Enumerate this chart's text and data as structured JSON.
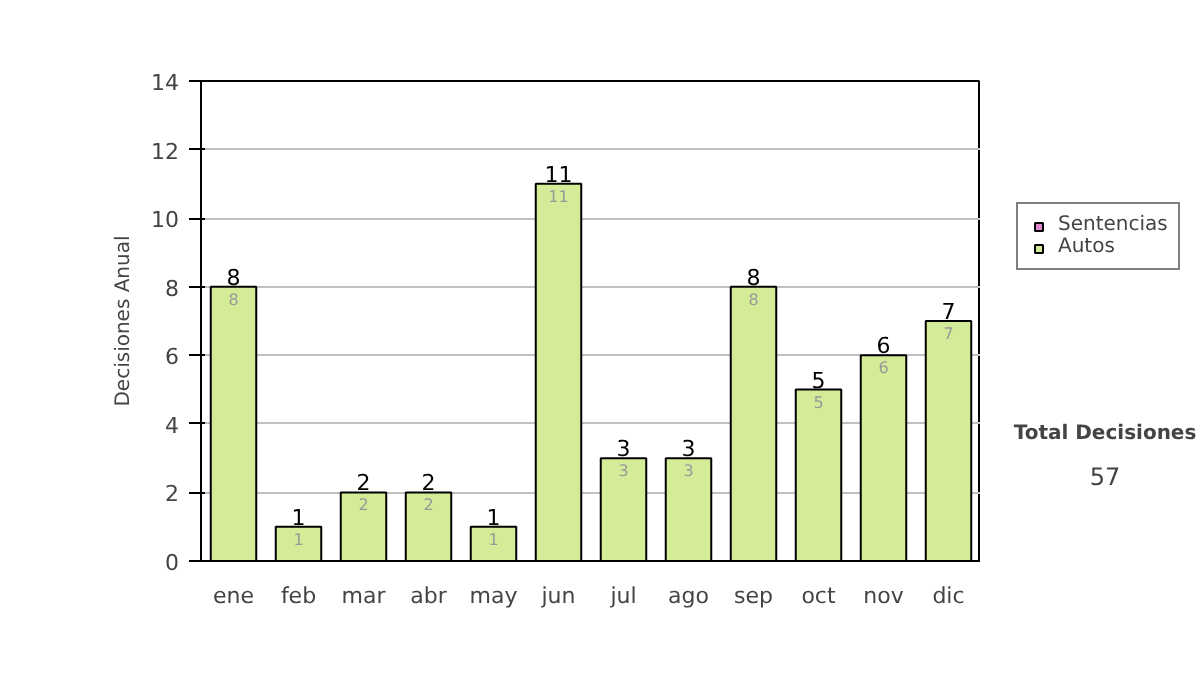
{
  "chart_data": {
    "type": "bar",
    "stacked": true,
    "categories": [
      "ene",
      "feb",
      "mar",
      "abr",
      "may",
      "jun",
      "jul",
      "ago",
      "sep",
      "oct",
      "nov",
      "dic"
    ],
    "ylabel": "Decisiones Anual",
    "series": [
      {
        "name": "Sentencias",
        "color": "#dd88cc",
        "values": [
          0,
          0,
          0,
          0,
          0,
          0,
          0,
          0,
          0,
          0,
          0,
          0
        ]
      },
      {
        "name": "Autos",
        "color": "#d4eb98",
        "values": [
          8,
          1,
          2,
          2,
          1,
          11,
          3,
          3,
          8,
          5,
          6,
          7
        ],
        "value_labels": [
          "8",
          "1",
          "2",
          "2",
          "1",
          "11",
          "3",
          "3",
          "8",
          "5",
          "6",
          "7"
        ]
      }
    ],
    "totals": [
      "8",
      "1",
      "2",
      "2",
      "1",
      "11",
      "3",
      "3",
      "8",
      "5",
      "6",
      "7"
    ],
    "ylim": [
      0,
      14
    ],
    "yticks": [
      0,
      2,
      4,
      6,
      8,
      10,
      12,
      14
    ],
    "grid": "y",
    "legend": "right",
    "annotations": [
      "Total Decisiones",
      "57"
    ]
  }
}
